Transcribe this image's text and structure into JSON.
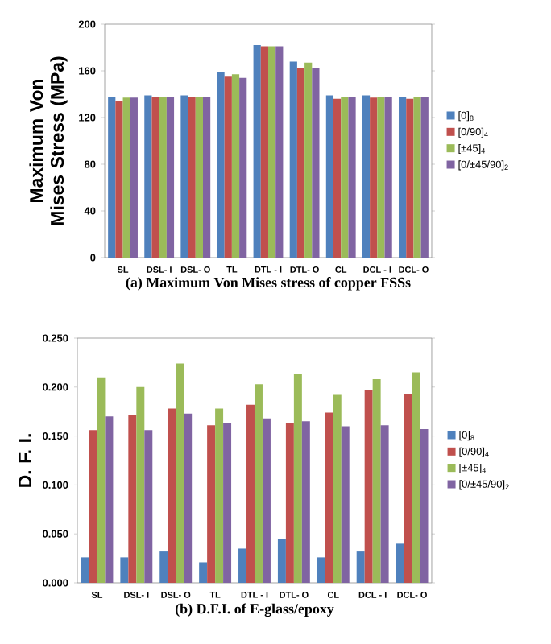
{
  "chart_data": [
    {
      "type": "bar",
      "title": "(a) Maximum Von Mises stress of copper FSSs",
      "ylabel": "Maximum Von Mises Stress (MPa)",
      "categories": [
        "SL",
        "DSL- I",
        "DSL- O",
        "TL",
        "DTL - I",
        "DTL- O",
        "CL",
        "DCL - I",
        "DCL- O"
      ],
      "series": [
        {
          "name": "[0]$_{8}$",
          "color": "#4f81bd",
          "values": [
            138,
            139,
            139,
            159,
            182,
            168,
            139,
            139,
            138
          ]
        },
        {
          "name": "[0/90]$_{4}$",
          "color": "#c0504d",
          "values": [
            134,
            138,
            138,
            155,
            181,
            162,
            136,
            137,
            136
          ]
        },
        {
          "name": "[±45]$_{4}$",
          "color": "#9bbb59",
          "values": [
            137,
            138,
            138,
            157,
            181,
            167,
            138,
            138,
            138
          ]
        },
        {
          "name": "[0/±45/90]$_{2}$",
          "color": "#8064a2",
          "values": [
            137,
            138,
            138,
            154,
            181,
            162,
            138,
            138,
            138
          ]
        }
      ],
      "ylim": [
        0,
        200
      ],
      "yticks": [
        0,
        40,
        80,
        120,
        160,
        200
      ],
      "legend": "right"
    },
    {
      "type": "bar",
      "title": "(b) D.F.I. of E-glass/epoxy",
      "ylabel": "D. F. I.",
      "categories": [
        "SL",
        "DSL- I",
        "DSL- O",
        "TL",
        "DTL - I",
        "DTL- O",
        "CL",
        "DCL - I",
        "DCL- O"
      ],
      "series": [
        {
          "name": "[0]$_{8}$",
          "color": "#4f81bd",
          "values": [
            0.026,
            0.026,
            0.032,
            0.021,
            0.035,
            0.045,
            0.026,
            0.032,
            0.04
          ]
        },
        {
          "name": "[0/90]$_{4}$",
          "color": "#c0504d",
          "values": [
            0.156,
            0.171,
            0.178,
            0.161,
            0.182,
            0.163,
            0.174,
            0.197,
            0.193
          ]
        },
        {
          "name": "[±45]$_{4}$",
          "color": "#9bbb59",
          "values": [
            0.21,
            0.2,
            0.224,
            0.178,
            0.203,
            0.213,
            0.192,
            0.208,
            0.215
          ]
        },
        {
          "name": "[0/±45/90]$_{2}$",
          "color": "#8064a2",
          "values": [
            0.17,
            0.156,
            0.173,
            0.163,
            0.168,
            0.165,
            0.16,
            0.161,
            0.157
          ]
        }
      ],
      "ylim": [
        0,
        0.25
      ],
      "yticks": [
        {
          "value": 0,
          "label": "0.000"
        },
        {
          "value": 0.05,
          "label": "0.050"
        },
        {
          "value": 0.1,
          "label": "0.100"
        },
        {
          "value": 0.15,
          "label": "0.150"
        },
        {
          "value": 0.2,
          "label": "0.200"
        },
        {
          "value": 0.25,
          "label": "0.250"
        }
      ],
      "legend": "right"
    }
  ]
}
